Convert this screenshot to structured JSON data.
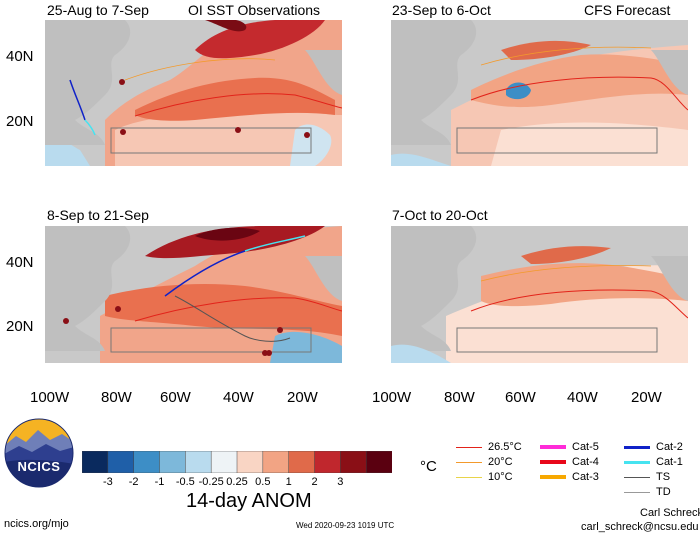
{
  "panels": [
    {
      "title_left": "25-Aug to 7-Sep",
      "title_right": "OI SST Observations"
    },
    {
      "title_left": "23-Sep to 6-Oct",
      "title_right": "CFS Forecast"
    },
    {
      "title_left": "8-Sep to 21-Sep",
      "title_right": ""
    },
    {
      "title_left": "7-Oct to 20-Oct",
      "title_right": ""
    }
  ],
  "lat_labels": [
    "40N",
    "20N"
  ],
  "lon_labels": [
    "100W",
    "80W",
    "60W",
    "40W",
    "20W"
  ],
  "colorbar": {
    "title": "14-day ANOM",
    "ticks": [
      "-3",
      "-2",
      "-1",
      "-0.5",
      "-0.25",
      "0.25",
      "0.5",
      "1",
      "2",
      "3"
    ],
    "colors": [
      "#0a2a5e",
      "#1f5fa8",
      "#3d8ec6",
      "#7db8da",
      "#b9dbee",
      "#eef3f6",
      "#f9d5c4",
      "#f2a484",
      "#e06a4a",
      "#c0272d",
      "#8a0f16",
      "#5a0010"
    ]
  },
  "unit_label": "°C",
  "legend_isotherms": [
    {
      "label": "26.5°C",
      "color": "#e2231a"
    },
    {
      "label": "20°C",
      "color": "#f39a2c"
    },
    {
      "label": "10°C",
      "color": "#e8d44a"
    }
  ],
  "legend_cats_col1": [
    {
      "label": "Cat-5",
      "color": "#ff2bd8"
    },
    {
      "label": "Cat-4",
      "color": "#e8071a"
    },
    {
      "label": "Cat-3",
      "color": "#f7a800"
    }
  ],
  "legend_cats_col2": [
    {
      "label": "Cat-2",
      "color": "#1022c8"
    },
    {
      "label": "Cat-1",
      "color": "#46e3f0"
    },
    {
      "label": "TS",
      "color": "#555555"
    },
    {
      "label": "TD",
      "color": "#999999"
    }
  ],
  "logo_text": "NCICS",
  "footer_left": "ncics.org/mjo",
  "footer_timestamp": "Wed 2020-09-23 1019 UTC",
  "author_name": "Carl Schreck",
  "author_email": "carl_schreck@ncsu.edu"
}
